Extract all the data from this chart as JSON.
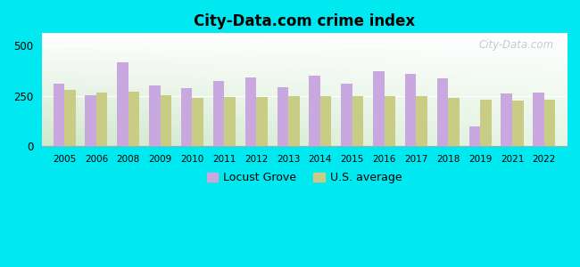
{
  "title": "City-Data.com crime index",
  "years": [
    "2005",
    "2006",
    "2008",
    "2009",
    "2010",
    "2011",
    "2012",
    "2013",
    "2014",
    "2015",
    "2016",
    "2017",
    "2018",
    "2019",
    "2021",
    "2022"
  ],
  "locust_grove": [
    310,
    252,
    415,
    300,
    290,
    325,
    340,
    292,
    348,
    312,
    372,
    358,
    338,
    98,
    262,
    268
  ],
  "us_average": [
    280,
    268,
    272,
    252,
    240,
    242,
    243,
    250,
    246,
    246,
    246,
    246,
    238,
    232,
    228,
    232
  ],
  "locust_grove_color": "#c9a8e0",
  "us_average_color": "#c8cc84",
  "fig_bg": "#00e8f0",
  "ylim": [
    0,
    560
  ],
  "yticks": [
    0,
    250,
    500
  ],
  "bar_width": 0.35,
  "legend_labels": [
    "Locust Grove",
    "U.S. average"
  ],
  "watermark": "City-Data.com",
  "grad_colors": [
    "#e8f5e9",
    "#f7fcf5",
    "#ffffff"
  ],
  "plot_bg_left": "#d0edcc",
  "plot_bg_right": "#f0f9f0"
}
